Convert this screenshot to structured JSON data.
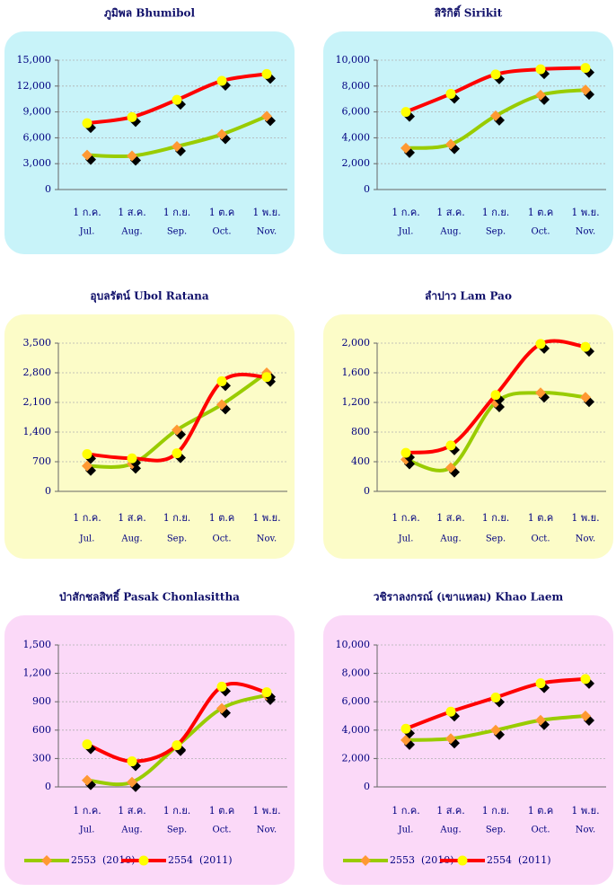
{
  "chart_data": [
    {
      "type": "line",
      "title": "ภูมิพล  Bhumibol",
      "panel_color": "#c8f3f9",
      "categories": [
        "1 ก.ค.",
        "1 ส.ค.",
        "1 ก.ย.",
        "1 ต.ค",
        "1 พ.ย."
      ],
      "categories_en": [
        "Jul.",
        "Aug.",
        "Sep.",
        "Oct.",
        "Nov."
      ],
      "ylim": [
        0,
        15000
      ],
      "yticks": [
        0,
        {
          "value": 3000,
          "label": "3,000"
        },
        {
          "value": 6000,
          "label": "6,000"
        },
        {
          "value": 9000,
          "label": "9,000"
        },
        {
          "value": 12000,
          "label": "12,000"
        },
        {
          "value": 15000,
          "label": "15,000"
        }
      ],
      "grid": true,
      "legend": false,
      "series": [
        {
          "name": "2553  (2010)",
          "color": "#99cc00",
          "marker_color": "#ff9933",
          "marker": "diamond",
          "values": [
            4000,
            3900,
            5000,
            6400,
            8500
          ]
        },
        {
          "name": "2554  (2011)",
          "color": "#ff0000",
          "marker_color": "#ffff00",
          "marker": "circle",
          "values": [
            7700,
            8400,
            10400,
            12600,
            13400
          ]
        }
      ]
    },
    {
      "type": "line",
      "title": "สิริกิติ์  Sirikit",
      "panel_color": "#c8f3f9",
      "categories": [
        "1 ก.ค.",
        "1 ส.ค.",
        "1 ก.ย.",
        "1 ต.ค",
        "1 พ.ย."
      ],
      "categories_en": [
        "Jul.",
        "Aug.",
        "Sep.",
        "Oct.",
        "Nov."
      ],
      "ylim": [
        0,
        10000
      ],
      "yticks": [
        0,
        {
          "value": 2000,
          "label": "2,000"
        },
        {
          "value": 4000,
          "label": "4,000"
        },
        {
          "value": 6000,
          "label": "6,000"
        },
        {
          "value": 8000,
          "label": "8,000"
        },
        {
          "value": 10000,
          "label": "10,000"
        }
      ],
      "grid": true,
      "legend": false,
      "series": [
        {
          "name": "2553  (2010)",
          "color": "#99cc00",
          "marker_color": "#ff9933",
          "marker": "diamond",
          "values": [
            3200,
            3500,
            5700,
            7300,
            7700
          ]
        },
        {
          "name": "2554  (2011)",
          "color": "#ff0000",
          "marker_color": "#ffff00",
          "marker": "circle",
          "values": [
            6000,
            7400,
            8900,
            9300,
            9400
          ]
        }
      ]
    },
    {
      "type": "line",
      "title": "อุบลรัตน์  Ubol Ratana",
      "panel_color": "#fcfcc8",
      "categories": [
        "1 ก.ค.",
        "1 ส.ค.",
        "1 ก.ย.",
        "1 ต.ค",
        "1 พ.ย."
      ],
      "categories_en": [
        "Jul.",
        "Aug.",
        "Sep.",
        "Oct.",
        "Nov."
      ],
      "ylim": [
        0,
        3500
      ],
      "yticks": [
        0,
        700,
        {
          "value": 1400,
          "label": "1,400"
        },
        {
          "value": 2100,
          "label": "2,100"
        },
        {
          "value": 2800,
          "label": "2,800"
        },
        {
          "value": 3500,
          "label": "3,500"
        }
      ],
      "grid": true,
      "legend": false,
      "series": [
        {
          "name": "2553  (2010)",
          "color": "#99cc00",
          "marker_color": "#ff9933",
          "marker": "diamond",
          "values": [
            600,
            650,
            1450,
            2050,
            2800
          ]
        },
        {
          "name": "2554  (2011)",
          "color": "#ff0000",
          "marker_color": "#ffff00",
          "marker": "circle",
          "values": [
            880,
            780,
            900,
            2600,
            2700
          ]
        }
      ]
    },
    {
      "type": "line",
      "title": "ลำปาว Lam Pao",
      "panel_color": "#fcfcc8",
      "categories": [
        "1 ก.ค.",
        "1 ส.ค.",
        "1 ก.ย.",
        "1 ต.ค",
        "1 พ.ย."
      ],
      "categories_en": [
        "Jul.",
        "Aug.",
        "Sep.",
        "Oct.",
        "Nov."
      ],
      "ylim": [
        0,
        2000
      ],
      "yticks": [
        0,
        400,
        800,
        {
          "value": 1200,
          "label": "1,200"
        },
        {
          "value": 1600,
          "label": "1,600"
        },
        {
          "value": 2000,
          "label": "2,000"
        }
      ],
      "grid": true,
      "legend": false,
      "series": [
        {
          "name": "2553  (2010)",
          "color": "#99cc00",
          "marker_color": "#ff9933",
          "marker": "diamond",
          "values": [
            430,
            320,
            1200,
            1330,
            1270
          ]
        },
        {
          "name": "2554  (2011)",
          "color": "#ff0000",
          "marker_color": "#ffff00",
          "marker": "circle",
          "values": [
            520,
            620,
            1300,
            1990,
            1950
          ]
        }
      ]
    },
    {
      "type": "line",
      "title": "ป่าสักชลสิทธิ์  Pasak Chonlasittha",
      "panel_color": "#fbd9f8",
      "categories": [
        "1 ก.ค.",
        "1 ส.ค.",
        "1 ก.ย.",
        "1 ต.ค",
        "1 พ.ย."
      ],
      "categories_en": [
        "Jul.",
        "Aug.",
        "Sep.",
        "Oct.",
        "Nov."
      ],
      "ylim": [
        0,
        1500
      ],
      "yticks": [
        0,
        300,
        600,
        900,
        {
          "value": 1200,
          "label": "1,200"
        },
        {
          "value": 1500,
          "label": "1,500"
        }
      ],
      "grid": true,
      "legend": true,
      "series": [
        {
          "name": "2553  (2010)",
          "color": "#99cc00",
          "marker_color": "#ff9933",
          "marker": "diamond",
          "values": [
            70,
            50,
            430,
            830,
            970
          ]
        },
        {
          "name": "2554  (2011)",
          "color": "#ff0000",
          "marker_color": "#ffff00",
          "marker": "circle",
          "values": [
            450,
            270,
            440,
            1060,
            1000
          ]
        }
      ]
    },
    {
      "type": "line",
      "title": "วชิราลงกรณ์ (เขาแหลม) Khao Laem",
      "panel_color": "#fbd9f8",
      "categories": [
        "1 ก.ค.",
        "1 ส.ค.",
        "1 ก.ย.",
        "1 ต.ค",
        "1 พ.ย."
      ],
      "categories_en": [
        "Jul.",
        "Aug.",
        "Sep.",
        "Oct.",
        "Nov."
      ],
      "ylim": [
        0,
        10000
      ],
      "yticks": [
        0,
        {
          "value": 2000,
          "label": "2,000"
        },
        {
          "value": 4000,
          "label": "4,000"
        },
        {
          "value": 6000,
          "label": "6,000"
        },
        {
          "value": 8000,
          "label": "8,000"
        },
        {
          "value": 10000,
          "label": "10,000"
        }
      ],
      "grid": true,
      "legend": true,
      "series": [
        {
          "name": "2553  (2010)",
          "color": "#99cc00",
          "marker_color": "#ff9933",
          "marker": "diamond",
          "values": [
            3300,
            3400,
            4000,
            4700,
            5000
          ]
        },
        {
          "name": "2554  (2011)",
          "color": "#ff0000",
          "marker_color": "#ffff00",
          "marker": "circle",
          "values": [
            4100,
            5300,
            6300,
            7300,
            7600
          ]
        }
      ]
    }
  ]
}
